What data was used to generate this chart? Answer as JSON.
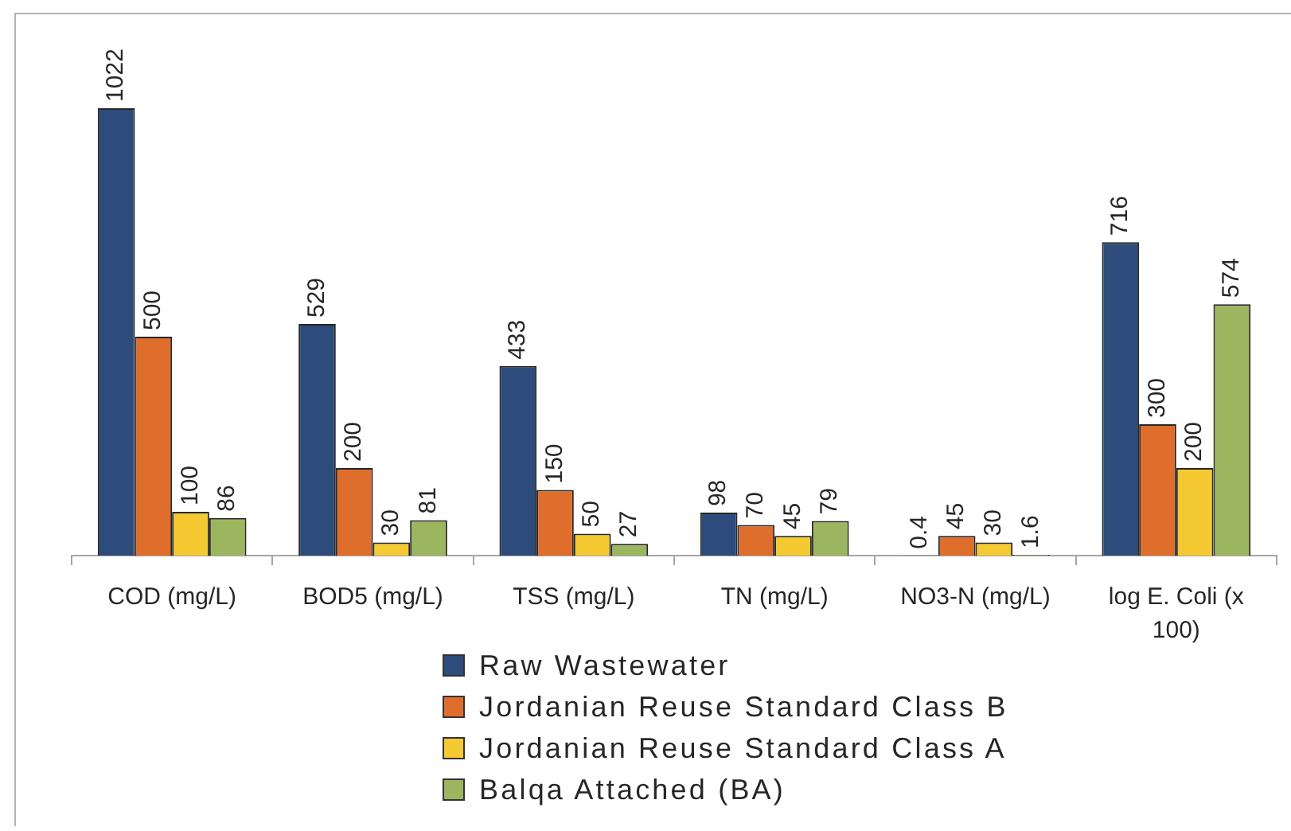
{
  "chart_data": {
    "type": "bar",
    "categories": [
      "COD (mg/L)",
      "BOD5 (mg/L)",
      "TSS (mg/L)",
      "TN (mg/L)",
      "NO3-N (mg/L)",
      "log E. Coli (x 100)"
    ],
    "series": [
      {
        "name": "Raw Wastewater",
        "color": "#2d4b7b",
        "values": [
          1022,
          529,
          433,
          98,
          0.4,
          716
        ]
      },
      {
        "name": "Jordanian Reuse Standard Class B",
        "color": "#df6d2b",
        "values": [
          500,
          200,
          150,
          70,
          45,
          300
        ]
      },
      {
        "name": "Jordanian Reuse Standard Class A",
        "color": "#f4c931",
        "values": [
          100,
          30,
          50,
          45,
          30,
          200
        ]
      },
      {
        "name": "Balqa Attached (BA)",
        "color": "#9bb65e",
        "values": [
          86,
          81,
          27,
          79,
          1.6,
          574
        ]
      }
    ],
    "data_labels": true,
    "legend": "bottom",
    "grid": false,
    "tick_labels": "x"
  }
}
